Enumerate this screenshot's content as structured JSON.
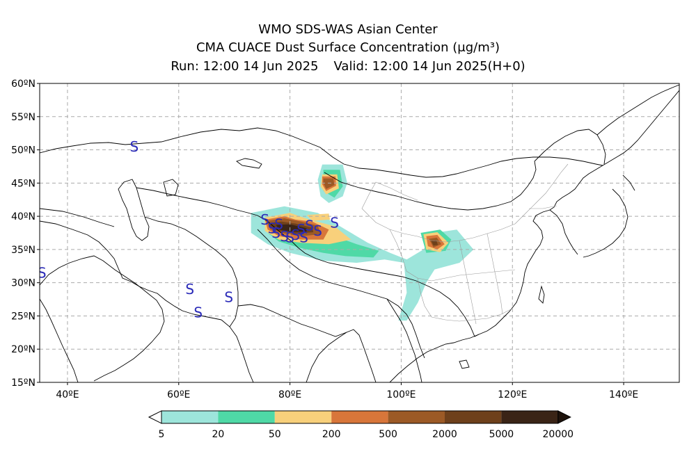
{
  "titles": {
    "line1": "WMO SDS-WAS Asian Center",
    "line2": "CMA CUACE Dust Surface Concentration (μg/m³)",
    "run": "Run: 12:00 14 Jun 2025",
    "valid": "Valid: 12:00 14 Jun 2025(H+0)"
  },
  "map": {
    "lon_range": [
      35,
      150
    ],
    "lat_range": [
      15,
      60
    ],
    "lon_ticks": [
      {
        "value": 40,
        "label": "40ºE"
      },
      {
        "value": 60,
        "label": "60ºE"
      },
      {
        "value": 80,
        "label": "80ºE"
      },
      {
        "value": 100,
        "label": "100ºE"
      },
      {
        "value": 120,
        "label": "120ºE"
      },
      {
        "value": 140,
        "label": "140ºE"
      }
    ],
    "lat_ticks": [
      {
        "value": 15,
        "label": "15ºN"
      },
      {
        "value": 20,
        "label": "20ºN"
      },
      {
        "value": 25,
        "label": "25ºN"
      },
      {
        "value": 30,
        "label": "30ºN"
      },
      {
        "value": 35,
        "label": "35ºN"
      },
      {
        "value": 40,
        "label": "40ºN"
      },
      {
        "value": 45,
        "label": "45ºN"
      },
      {
        "value": 50,
        "label": "50ºN"
      },
      {
        "value": 55,
        "label": "55ºN"
      },
      {
        "value": 60,
        "label": "60ºN"
      }
    ],
    "grid": true,
    "station_symbol": "S",
    "station_color": "#2a2ab8",
    "stations": [
      {
        "lon": 52.0,
        "lat": 50.5
      },
      {
        "lon": 35.4,
        "lat": 31.5
      },
      {
        "lon": 62.0,
        "lat": 29.0
      },
      {
        "lon": 63.5,
        "lat": 25.5
      },
      {
        "lon": 69.0,
        "lat": 27.8
      },
      {
        "lon": 75.5,
        "lat": 39.5
      },
      {
        "lon": 76.8,
        "lat": 38.2
      },
      {
        "lon": 77.5,
        "lat": 37.5
      },
      {
        "lon": 78.0,
        "lat": 38.8
      },
      {
        "lon": 79.0,
        "lat": 37.0
      },
      {
        "lon": 80.0,
        "lat": 36.8
      },
      {
        "lon": 81.0,
        "lat": 37.2
      },
      {
        "lon": 82.0,
        "lat": 38.0
      },
      {
        "lon": 82.5,
        "lat": 36.8
      },
      {
        "lon": 83.5,
        "lat": 38.6
      },
      {
        "lon": 85.0,
        "lat": 37.8
      },
      {
        "lon": 88.0,
        "lat": 39.0
      }
    ]
  },
  "legend": {
    "thresholds": [
      "5",
      "20",
      "50",
      "200",
      "500",
      "2000",
      "5000",
      "20000"
    ],
    "colors": [
      "#9de5db",
      "#4fd9a6",
      "#f8d07b",
      "#d8763a",
      "#9c5a26",
      "#6e401b",
      "#3a2416"
    ],
    "under_color": "#ffffff",
    "over_color": "#1e120b"
  },
  "dust_levels": {
    "colors": [
      "#9de5db",
      "#4fd9a6",
      "#f8d07b",
      "#d8763a",
      "#9c5a26",
      "#6e401b",
      "#3a2416"
    ],
    "regions": [
      {
        "level": 0,
        "points": [
          [
            73,
            40.5
          ],
          [
            79,
            41.5
          ],
          [
            85,
            40.5
          ],
          [
            90,
            38
          ],
          [
            94,
            36
          ],
          [
            98,
            34.5
          ],
          [
            101,
            33.5
          ],
          [
            104,
            35
          ],
          [
            106,
            37.5
          ],
          [
            110,
            38
          ],
          [
            113,
            35
          ],
          [
            110.5,
            33
          ],
          [
            106,
            32
          ],
          [
            104.5,
            30
          ],
          [
            103,
            27
          ],
          [
            101,
            24.3
          ],
          [
            99.5,
            24.3
          ],
          [
            101,
            28.5
          ],
          [
            100.5,
            33
          ],
          [
            97,
            33.5
          ],
          [
            92,
            33
          ],
          [
            86,
            33.3
          ],
          [
            80,
            34.5
          ],
          [
            76,
            35.8
          ],
          [
            73,
            37.5
          ]
        ]
      },
      {
        "level": 0,
        "points": [
          [
            85.8,
            47.8
          ],
          [
            89.5,
            47.8
          ],
          [
            90.3,
            45
          ],
          [
            89.5,
            43
          ],
          [
            87,
            42
          ],
          [
            85.5,
            43
          ],
          [
            85,
            45.5
          ]
        ]
      },
      {
        "level": 1,
        "points": [
          [
            76,
            39.5
          ],
          [
            80,
            39
          ],
          [
            84,
            37.8
          ],
          [
            88,
            37
          ],
          [
            92,
            35.8
          ],
          [
            96,
            34.8
          ],
          [
            95,
            33.8
          ],
          [
            90,
            34
          ],
          [
            86,
            34.5
          ],
          [
            82,
            35.2
          ],
          [
            78,
            36.2
          ],
          [
            76,
            37.5
          ]
        ]
      },
      {
        "level": 1,
        "points": [
          [
            103.5,
            37.5
          ],
          [
            107,
            38
          ],
          [
            109,
            36.5
          ],
          [
            108,
            34.8
          ],
          [
            104.5,
            34.5
          ]
        ]
      },
      {
        "level": 1,
        "points": [
          [
            86,
            47
          ],
          [
            89,
            47
          ],
          [
            89.5,
            44.5
          ],
          [
            88,
            42.8
          ],
          [
            86,
            43.8
          ]
        ]
      },
      {
        "level": 2,
        "points": [
          [
            75.5,
            39.8
          ],
          [
            80,
            40.5
          ],
          [
            83.5,
            39.5
          ],
          [
            88,
            38.5
          ],
          [
            91,
            36.5
          ],
          [
            87,
            35.8
          ],
          [
            82,
            36
          ],
          [
            78,
            36.5
          ],
          [
            75.5,
            37.8
          ]
        ]
      },
      {
        "level": 2,
        "points": [
          [
            104,
            37.3
          ],
          [
            106.5,
            37.6
          ],
          [
            108.5,
            36
          ],
          [
            107,
            34.6
          ],
          [
            104.5,
            35
          ]
        ]
      },
      {
        "level": 2,
        "points": [
          [
            85.8,
            46.3
          ],
          [
            88.5,
            46.3
          ],
          [
            88.8,
            44.2
          ],
          [
            86.5,
            43.3
          ],
          [
            85.5,
            44.5
          ]
        ]
      },
      {
        "level": 2,
        "points": [
          [
            83,
            40.2
          ],
          [
            87,
            40.4
          ],
          [
            87.2,
            39.5
          ],
          [
            84,
            39.3
          ]
        ]
      },
      {
        "level": 3,
        "points": [
          [
            75.5,
            39.5
          ],
          [
            79,
            40
          ],
          [
            81,
            39.5
          ],
          [
            84,
            39.2
          ],
          [
            87,
            38
          ],
          [
            86,
            36.5
          ],
          [
            82,
            36.5
          ],
          [
            78,
            37
          ],
          [
            76,
            38
          ]
        ]
      },
      {
        "level": 3,
        "points": [
          [
            104.5,
            37
          ],
          [
            106.5,
            37.2
          ],
          [
            107.8,
            35.8
          ],
          [
            106.5,
            35
          ],
          [
            104.8,
            35.5
          ]
        ]
      },
      {
        "level": 3,
        "points": [
          [
            85.8,
            46
          ],
          [
            88.2,
            46
          ],
          [
            88.3,
            44.6
          ],
          [
            86.5,
            43.8
          ],
          [
            85.8,
            44.8
          ]
        ]
      },
      {
        "level": 4,
        "points": [
          [
            75.8,
            39.3
          ],
          [
            79,
            39.7
          ],
          [
            82,
            39.2
          ],
          [
            85,
            38.6
          ],
          [
            85.5,
            37.3
          ],
          [
            82,
            37
          ],
          [
            79,
            37.4
          ],
          [
            76.5,
            38
          ]
        ]
      },
      {
        "level": 4,
        "points": [
          [
            105,
            36.6
          ],
          [
            106.4,
            36.8
          ],
          [
            107.2,
            35.8
          ],
          [
            105.8,
            35.3
          ]
        ]
      },
      {
        "level": 4,
        "points": [
          [
            86,
            45.7
          ],
          [
            87.8,
            45.7
          ],
          [
            88,
            44.7
          ],
          [
            86.5,
            44.1
          ],
          [
            86,
            45
          ]
        ]
      },
      {
        "level": 5,
        "points": [
          [
            76.2,
            39
          ],
          [
            78.5,
            39.2
          ],
          [
            81,
            38.9
          ],
          [
            84,
            38.3
          ],
          [
            84.2,
            37.6
          ],
          [
            81,
            37.4
          ],
          [
            78,
            37.8
          ],
          [
            76.5,
            38.3
          ]
        ]
      },
      {
        "level": 5,
        "points": [
          [
            105.4,
            36.3
          ],
          [
            106.3,
            36.4
          ],
          [
            106.6,
            35.7
          ],
          [
            105.8,
            35.6
          ]
        ]
      },
      {
        "level": 6,
        "points": [
          [
            77.5,
            38.7
          ],
          [
            80,
            38.8
          ],
          [
            83,
            38.2
          ],
          [
            83,
            37.7
          ],
          [
            80,
            37.7
          ],
          [
            78,
            38
          ]
        ]
      }
    ]
  }
}
